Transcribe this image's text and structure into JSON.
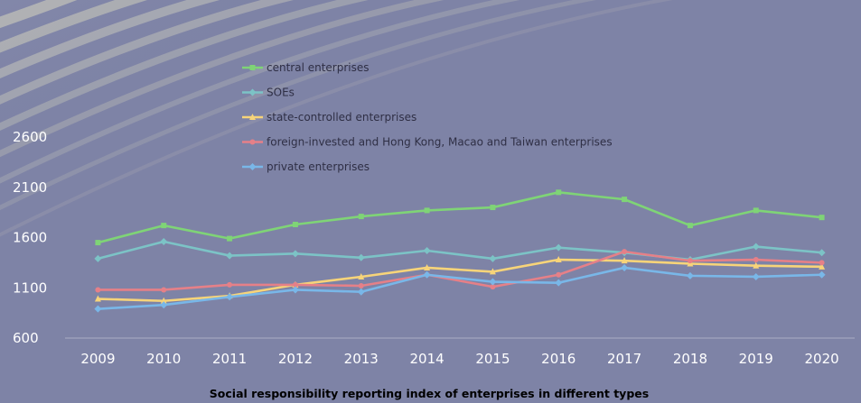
{
  "chart_data": {
    "type": "line",
    "title": "Social responsibility reporting index of enterprises in different types",
    "categories": [
      "2009",
      "2010",
      "2011",
      "2012",
      "2013",
      "2014",
      "2015",
      "2016",
      "2017",
      "2018",
      "2019",
      "2020"
    ],
    "y_ticks": [
      600,
      1100,
      1600,
      2100,
      2600
    ],
    "ylim": [
      600,
      2600
    ],
    "grid": false,
    "legend_position": "top-left",
    "series": [
      {
        "name": "central enterprises",
        "color": "#7fd476",
        "marker": "square",
        "values": [
          1550,
          1720,
          1590,
          1730,
          1810,
          1870,
          1900,
          2050,
          1980,
          1720,
          1870,
          1800
        ]
      },
      {
        "name": "SOEs",
        "color": "#7cc3c6",
        "marker": "diamond",
        "values": [
          1390,
          1560,
          1420,
          1440,
          1400,
          1470,
          1390,
          1500,
          1450,
          1380,
          1510,
          1450
        ]
      },
      {
        "name": "state-controlled enterprises",
        "color": "#f7d479",
        "marker": "triangle",
        "values": [
          990,
          970,
          1020,
          1130,
          1210,
          1300,
          1260,
          1380,
          1370,
          1340,
          1320,
          1310
        ]
      },
      {
        "name": "foreign-invested and Hong Kong, Macao and Taiwan enterprises",
        "color": "#e58088",
        "marker": "circle",
        "values": [
          1080,
          1080,
          1130,
          1130,
          1120,
          1230,
          1110,
          1230,
          1460,
          1370,
          1380,
          1350
        ]
      },
      {
        "name": "private enterprises",
        "color": "#79b7e8",
        "marker": "diamond",
        "values": [
          890,
          930,
          1010,
          1080,
          1060,
          1230,
          1160,
          1150,
          1300,
          1220,
          1210,
          1230
        ]
      }
    ]
  }
}
